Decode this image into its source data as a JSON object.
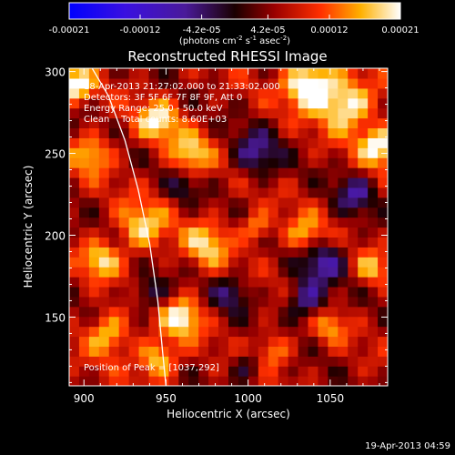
{
  "chart_data": {
    "type": "heatmap",
    "title": "Reconstructed RHESSI Image",
    "xlabel": "Heliocentric X (arcsec)",
    "ylabel": "Heliocentric Y (arcsec)",
    "xlim": [
      891,
      1085
    ],
    "ylim": [
      108,
      302
    ],
    "x_ticks": [
      900,
      950,
      1000,
      1050
    ],
    "x_tick_labels": [
      "900",
      "950",
      "1000",
      "1050"
    ],
    "y_ticks": [
      150,
      200,
      250,
      300
    ],
    "y_tick_labels": [
      "150",
      "200",
      "250",
      "300"
    ],
    "colorbar": {
      "range": [
        -0.00021,
        0.00021
      ],
      "ticks": [
        -0.00021,
        -0.00012,
        -4.2e-05,
        4.2e-05,
        0.00012,
        0.00021
      ],
      "tick_labels": [
        "-0.00021",
        "-0.00012",
        "-4.2e-05",
        "4.2e-05",
        "0.00012",
        "0.00021"
      ],
      "units_parts": [
        "(photons cm",
        "-2",
        " s",
        "-1",
        " asec",
        "-2",
        ")"
      ]
    },
    "annotations": [
      "18-Apr-2013 21:27:02.000 to 21:33:02.000",
      "Detectors: 3F 5F 6F 7F 8F 9F, Att 0",
      "Energy Range: 25.0 - 50.0 keV",
      "Clean    Total counts: 8.60E+03"
    ],
    "peak_label": "Position of Peak = [1037,292]",
    "peak": [
      1037,
      292
    ],
    "timestamp": "19-Apr-2013 04:59",
    "limb_curve": [
      [
        905,
        302
      ],
      [
        915,
        285
      ],
      [
        925,
        258
      ],
      [
        933,
        228
      ],
      [
        940,
        195
      ],
      [
        945,
        160
      ],
      [
        948,
        128
      ],
      [
        950,
        108
      ]
    ],
    "grid_size": [
      32,
      32
    ],
    "hot_spots": [
      {
        "x": 1037,
        "y": 292,
        "amp": 1.0,
        "r": 14
      },
      {
        "x": 1060,
        "y": 280,
        "amp": 0.8,
        "r": 16
      },
      {
        "x": 1080,
        "y": 255,
        "amp": 0.75,
        "r": 12
      },
      {
        "x": 895,
        "y": 292,
        "amp": 0.8,
        "r": 10
      },
      {
        "x": 945,
        "y": 270,
        "amp": 0.65,
        "r": 13
      },
      {
        "x": 965,
        "y": 250,
        "amp": 0.6,
        "r": 12
      },
      {
        "x": 905,
        "y": 250,
        "amp": 0.55,
        "r": 12
      },
      {
        "x": 935,
        "y": 205,
        "amp": 0.6,
        "r": 15
      },
      {
        "x": 975,
        "y": 195,
        "amp": 0.55,
        "r": 14
      },
      {
        "x": 1035,
        "y": 200,
        "amp": 0.55,
        "r": 12
      },
      {
        "x": 1005,
        "y": 205,
        "amp": 0.5,
        "r": 9
      },
      {
        "x": 960,
        "y": 150,
        "amp": 0.7,
        "r": 12
      },
      {
        "x": 945,
        "y": 125,
        "amp": 0.65,
        "r": 12
      },
      {
        "x": 915,
        "y": 140,
        "amp": 0.6,
        "r": 13
      },
      {
        "x": 1015,
        "y": 130,
        "amp": 0.45,
        "r": 11
      },
      {
        "x": 1050,
        "y": 145,
        "amp": 0.4,
        "r": 10
      },
      {
        "x": 1075,
        "y": 180,
        "amp": 0.45,
        "r": 10
      },
      {
        "x": 910,
        "y": 185,
        "amp": 0.6,
        "r": 11
      }
    ],
    "cold_spots": [
      {
        "x": 1045,
        "y": 185,
        "amp": 0.6,
        "r": 14
      },
      {
        "x": 1005,
        "y": 250,
        "amp": 0.55,
        "r": 14
      },
      {
        "x": 940,
        "y": 165,
        "amp": 0.5,
        "r": 10
      },
      {
        "x": 1035,
        "y": 160,
        "amp": 0.6,
        "r": 12
      },
      {
        "x": 990,
        "y": 165,
        "amp": 0.45,
        "r": 11
      },
      {
        "x": 1065,
        "y": 225,
        "amp": 0.5,
        "r": 12
      },
      {
        "x": 960,
        "y": 230,
        "amp": 0.35,
        "r": 9
      },
      {
        "x": 1000,
        "y": 120,
        "amp": 0.4,
        "r": 10
      }
    ]
  }
}
